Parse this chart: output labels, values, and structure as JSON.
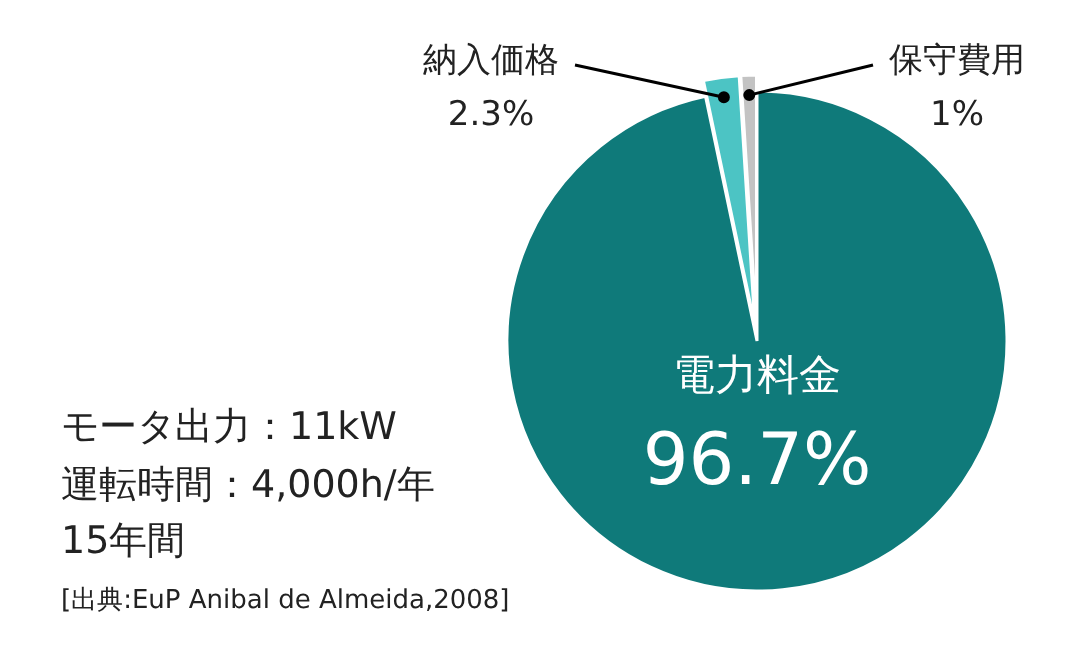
{
  "chart_data": {
    "type": "pie",
    "categories": [
      "電力料金",
      "納入価格",
      "保守費用"
    ],
    "values": [
      96.7,
      2.3,
      1
    ],
    "colors": [
      "#0f7a7a",
      "#4cc4c4",
      "#c3c3c3"
    ],
    "value_labels": [
      "96.7%",
      "2.3%",
      "1%"
    ],
    "annotations": [
      "モータ出力：11kW",
      "運転時間：4,000h/年",
      "15年間",
      "[出典:EuP Anibal de Almeida,2008]"
    ]
  }
}
